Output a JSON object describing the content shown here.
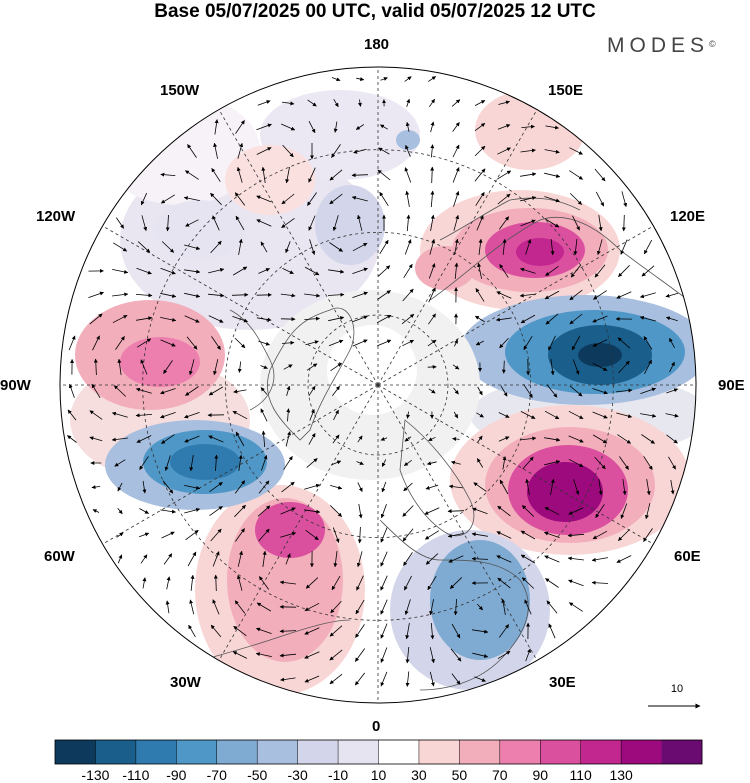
{
  "title": "Base 05/07/2025 00 UTC, valid 05/07/2025 12 UTC",
  "brand": {
    "name": "MODES",
    "mark": "©"
  },
  "longitude_labels": {
    "lon_180": "180",
    "lon_150w": "150W",
    "lon_150e": "150E",
    "lon_120w": "120W",
    "lon_120e": "120E",
    "lon_90w": "90W",
    "lon_90e": "90E",
    "lon_60w": "60W",
    "lon_60e": "60E",
    "lon_30w": "30W",
    "lon_30e": "30E",
    "lon_0": "0"
  },
  "reference_vector": {
    "label": "10"
  },
  "colorbar": {
    "labels": [
      "-130",
      "-110",
      "-90",
      "-70",
      "-50",
      "-30",
      "-10",
      "10",
      "30",
      "50",
      "70",
      "90",
      "110",
      "130"
    ],
    "colors": [
      "#0d3a5c",
      "#1a5e8c",
      "#2f7bb0",
      "#4f97c7",
      "#7fabd3",
      "#a9bfdf",
      "#d3d6ea",
      "#e6e4f0",
      "#ffffff",
      "#f9d6d6",
      "#f3aebc",
      "#ec7fae",
      "#db4f9f",
      "#c2268f",
      "#9c0a7e",
      "#6a0b71"
    ]
  },
  "anomaly_centers": [
    {
      "lon": 120,
      "lat": 62,
      "value": 110,
      "sign": "positive"
    },
    {
      "lon": 90,
      "lat": 55,
      "value": -110,
      "sign": "negative"
    },
    {
      "lon": 60,
      "lat": 50,
      "value": 120,
      "sign": "positive"
    },
    {
      "lon": 30,
      "lat": 45,
      "value": -70,
      "sign": "negative"
    },
    {
      "lon": -30,
      "lat": 45,
      "value": 85,
      "sign": "positive"
    },
    {
      "lon": -65,
      "lat": 50,
      "value": -100,
      "sign": "negative"
    },
    {
      "lon": -95,
      "lat": 45,
      "value": 65,
      "sign": "positive"
    },
    {
      "lon": -165,
      "lat": 55,
      "value": 20,
      "sign": "positive"
    },
    {
      "lon": 175,
      "lat": 60,
      "value": -30,
      "sign": "negative"
    },
    {
      "lon": -130,
      "lat": 50,
      "value": -25,
      "sign": "negative"
    }
  ]
}
